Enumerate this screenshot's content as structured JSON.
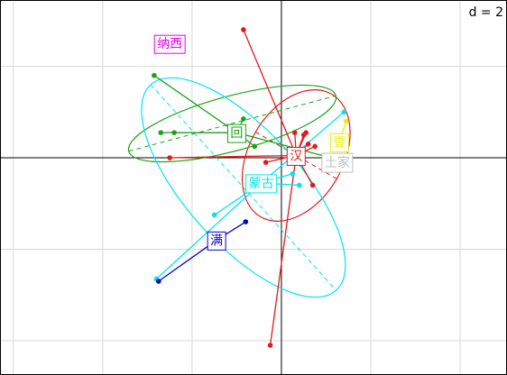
{
  "chart_data": {
    "type": "scatter",
    "title": "",
    "xlabel": "",
    "ylabel": "",
    "scale_label": "d = 2",
    "xlim": [
      -6.3,
      5.05
    ],
    "ylim": [
      -4.75,
      3.45
    ],
    "grid": true,
    "grid_step": 2,
    "axes_through_origin": true,
    "groups": [
      {
        "name": "汉",
        "color": "#e31a1c",
        "label_pos": [
          0.33,
          0.05
        ],
        "ellipse": {
          "center": [
            0.33,
            0.05
          ],
          "rx": 1.05,
          "ry": 1.55,
          "angle": -30
        },
        "points": [
          [
            -0.85,
            2.8
          ],
          [
            0.3,
            0.55
          ],
          [
            0.5,
            0.5
          ],
          [
            0.55,
            0.55
          ],
          [
            0.6,
            0.3
          ],
          [
            0.75,
            0.25
          ],
          [
            -0.35,
            -0.1
          ],
          [
            -2.5,
            0.0
          ],
          [
            -0.25,
            -4.1
          ],
          [
            0.7,
            -0.6
          ]
        ]
      },
      {
        "name": "回",
        "color": "#1aa31a",
        "label_pos": [
          -1.0,
          0.55
        ],
        "ellipse": {
          "center": [
            -1.1,
            0.75
          ],
          "rx": 2.4,
          "ry": 0.6,
          "angle": 15
        },
        "points": [
          [
            -2.85,
            1.8
          ],
          [
            -2.7,
            0.55
          ],
          [
            -2.4,
            0.55
          ],
          [
            -0.85,
            0.85
          ],
          [
            -0.6,
            0.25
          ],
          [
            1.1,
            0.0
          ]
        ]
      },
      {
        "name": "蒙古",
        "color": "#00e5ee",
        "label_pos": [
          -0.45,
          -0.55
        ],
        "ellipse": {
          "center": [
            -0.85,
            -0.65
          ],
          "rx": 3.1,
          "ry": 1.25,
          "angle": -48
        },
        "points": [
          [
            -2.8,
            -2.65
          ],
          [
            -1.5,
            -1.25
          ],
          [
            0.25,
            -0.35
          ],
          [
            0.4,
            -0.6
          ],
          [
            1.4,
            1.0
          ]
        ]
      },
      {
        "name": "满",
        "color": "#0000cc",
        "label_pos": [
          -1.45,
          -1.8
        ],
        "ellipse": null,
        "points": [
          [
            -2.75,
            -2.7
          ],
          [
            -0.8,
            -1.4
          ]
        ]
      },
      {
        "name": "土家",
        "color": "#bfbfbf",
        "label_pos": [
          1.25,
          -0.1
        ],
        "ellipse": null,
        "points": [
          [
            1.1,
            -0.15
          ]
        ]
      },
      {
        "name": "壹",
        "color": "#eeee00",
        "label_pos": [
          1.3,
          0.35
        ],
        "ellipse": null,
        "points": [
          [
            1.45,
            0.8
          ],
          [
            1.25,
            0.35
          ]
        ]
      },
      {
        "name": "纳西",
        "color": "#ee00ee",
        "label_pos": [
          -2.5,
          2.5
        ],
        "ellipse": null,
        "points": []
      }
    ]
  }
}
